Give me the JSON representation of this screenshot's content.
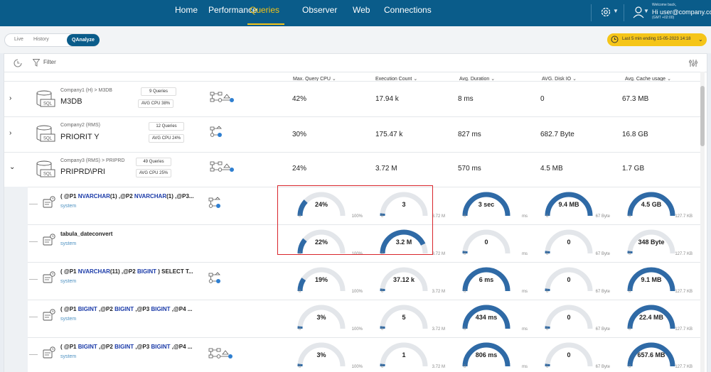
{
  "nav": {
    "items": [
      "Home",
      "Performance",
      "Queries",
      "Observer",
      "Web",
      "Connections"
    ],
    "active": "Queries",
    "welcome": "Welcome back,",
    "user": "Hi user@company.com",
    "timezone": "(GMT +02:00)"
  },
  "mode_tabs": {
    "live": "Live",
    "history": "History",
    "qanalyze": "QAnalyze"
  },
  "time_range": "Last 5 min ending  15-05-2023 14:18",
  "toolbar": {
    "filter": "Filter"
  },
  "columns": {
    "cpu": "Max. Query CPU",
    "exec": "Execution Count",
    "duration": "Avg. Duration",
    "disk": "AVG. Disk IO",
    "cache": "Avg. Cache usage"
  },
  "companies": [
    {
      "name": "Company1 (H) > M3DB",
      "title": "M3DB",
      "queries": "9 Queries",
      "avg_cpu": "AVG CPU 38%",
      "cpu": "42%",
      "exec": "17.94 k",
      "duration": "8 ms",
      "disk": "0",
      "cache": "67.3 MB",
      "expand": "›"
    },
    {
      "name": "Company2 (RMS)",
      "title": "PRIORIT Y",
      "queries": "12 Queries",
      "avg_cpu": "AVG CPU 24%",
      "cpu": "30%",
      "exec": "175.47 k",
      "duration": "827 ms",
      "disk": "682.7 Byte",
      "cache": "16.8 GB",
      "expand": "›"
    },
    {
      "name": "Company3 (RMS) > PRIPRD",
      "title": "PRIPRD\\PRI",
      "queries": "49 Queries",
      "avg_cpu": "AVG CPU 25%",
      "cpu": "24%",
      "exec": "3.72 M",
      "duration": "570 ms",
      "disk": "4.5 MB",
      "cache": "1.7 GB",
      "expand": "⌄"
    }
  ],
  "query_rows": [
    {
      "parts": [
        [
          "( @P1 ",
          ""
        ],
        [
          "NVARCHAR",
          "kw"
        ],
        [
          "(1) ,@P2 ",
          ""
        ],
        [
          "NVARCHAR",
          "kw"
        ],
        [
          "(1) ,@P3...",
          ""
        ]
      ],
      "user": "system",
      "gauges": [
        {
          "value": "24%",
          "min": "0",
          "max": "100%",
          "fill": 0.24
        },
        {
          "value": "3",
          "min": "0",
          "max": "3.72 M",
          "fill": 0.0
        },
        {
          "value": "3 sec",
          "min": "0",
          "max": "ms",
          "fill": 1.0
        },
        {
          "value": "9.4 MB",
          "min": "0",
          "max": "67 Byte",
          "fill": 1.0
        },
        {
          "value": "4.5 GB",
          "min": "0",
          "max": "127.7 KB",
          "fill": 1.0
        }
      ]
    },
    {
      "parts": [
        [
          "tabula_dateconvert",
          ""
        ]
      ],
      "user": "system",
      "gauges": [
        {
          "value": "22%",
          "min": "0",
          "max": "100%",
          "fill": 0.22
        },
        {
          "value": "3.2 M",
          "min": "0",
          "max": "3.72 M",
          "fill": 0.86
        },
        {
          "value": "0",
          "min": "0",
          "max": "ms",
          "fill": 0.0
        },
        {
          "value": "0",
          "min": "0",
          "max": "67 Byte",
          "fill": 0.0
        },
        {
          "value": "348 Byte",
          "min": "0",
          "max": "127.7 KB",
          "fill": 0.0
        }
      ]
    },
    {
      "parts": [
        [
          "( @P1 ",
          ""
        ],
        [
          "NVARCHAR",
          "kw"
        ],
        [
          "(11) ,@P2 ",
          ""
        ],
        [
          "BIGINT",
          "kw"
        ],
        [
          " ) SELECT T...",
          ""
        ]
      ],
      "user": "system",
      "gauges": [
        {
          "value": "19%",
          "min": "0",
          "max": "100%",
          "fill": 0.19
        },
        {
          "value": "37.12 k",
          "min": "0",
          "max": "3.72 M",
          "fill": 0.01
        },
        {
          "value": "6 ms",
          "min": "0",
          "max": "ms",
          "fill": 1.0
        },
        {
          "value": "0",
          "min": "0",
          "max": "67 Byte",
          "fill": 0.0
        },
        {
          "value": "9.1 MB",
          "min": "0",
          "max": "127.7 KB",
          "fill": 1.0
        }
      ]
    },
    {
      "parts": [
        [
          "( @P1 ",
          ""
        ],
        [
          "BIGINT",
          "kw"
        ],
        [
          " ,@P2 ",
          ""
        ],
        [
          "BIGINT",
          "kw"
        ],
        [
          " ,@P3 ",
          ""
        ],
        [
          "BIGINT",
          "kw"
        ],
        [
          " ,@P4 ...",
          ""
        ]
      ],
      "user": "system",
      "gauges": [
        {
          "value": "3%",
          "min": "0",
          "max": "100%",
          "fill": 0.03
        },
        {
          "value": "5",
          "min": "0",
          "max": "3.72 M",
          "fill": 0.0
        },
        {
          "value": "434 ms",
          "min": "0",
          "max": "ms",
          "fill": 1.0
        },
        {
          "value": "0",
          "min": "0",
          "max": "67 Byte",
          "fill": 0.0
        },
        {
          "value": "22.4 MB",
          "min": "0",
          "max": "127.7 KB",
          "fill": 1.0
        }
      ]
    },
    {
      "parts": [
        [
          "( @P1 ",
          ""
        ],
        [
          "BIGINT",
          "kw"
        ],
        [
          " ,@P2 ",
          ""
        ],
        [
          "BIGINT",
          "kw"
        ],
        [
          " ,@P3 ",
          ""
        ],
        [
          "BIGINT",
          "kw"
        ],
        [
          " ,@P4 ...",
          ""
        ]
      ],
      "user": "system",
      "gauges": [
        {
          "value": "3%",
          "min": "0",
          "max": "100%",
          "fill": 0.03
        },
        {
          "value": "1",
          "min": "0",
          "max": "3.72 M",
          "fill": 0.0
        },
        {
          "value": "806 ms",
          "min": "0",
          "max": "ms",
          "fill": 1.0
        },
        {
          "value": "0",
          "min": "0",
          "max": "67 Byte",
          "fill": 0.0
        },
        {
          "value": "657.6 MB",
          "min": "0",
          "max": "127.7 KB",
          "fill": 1.0
        }
      ]
    }
  ],
  "colors": {
    "nav_bg": "#0a5c8a",
    "accent": "#f5c518",
    "gauge_fill": "#2f6aa6",
    "gauge_track": "#e3e6ea",
    "highlight": "#d9252b"
  }
}
